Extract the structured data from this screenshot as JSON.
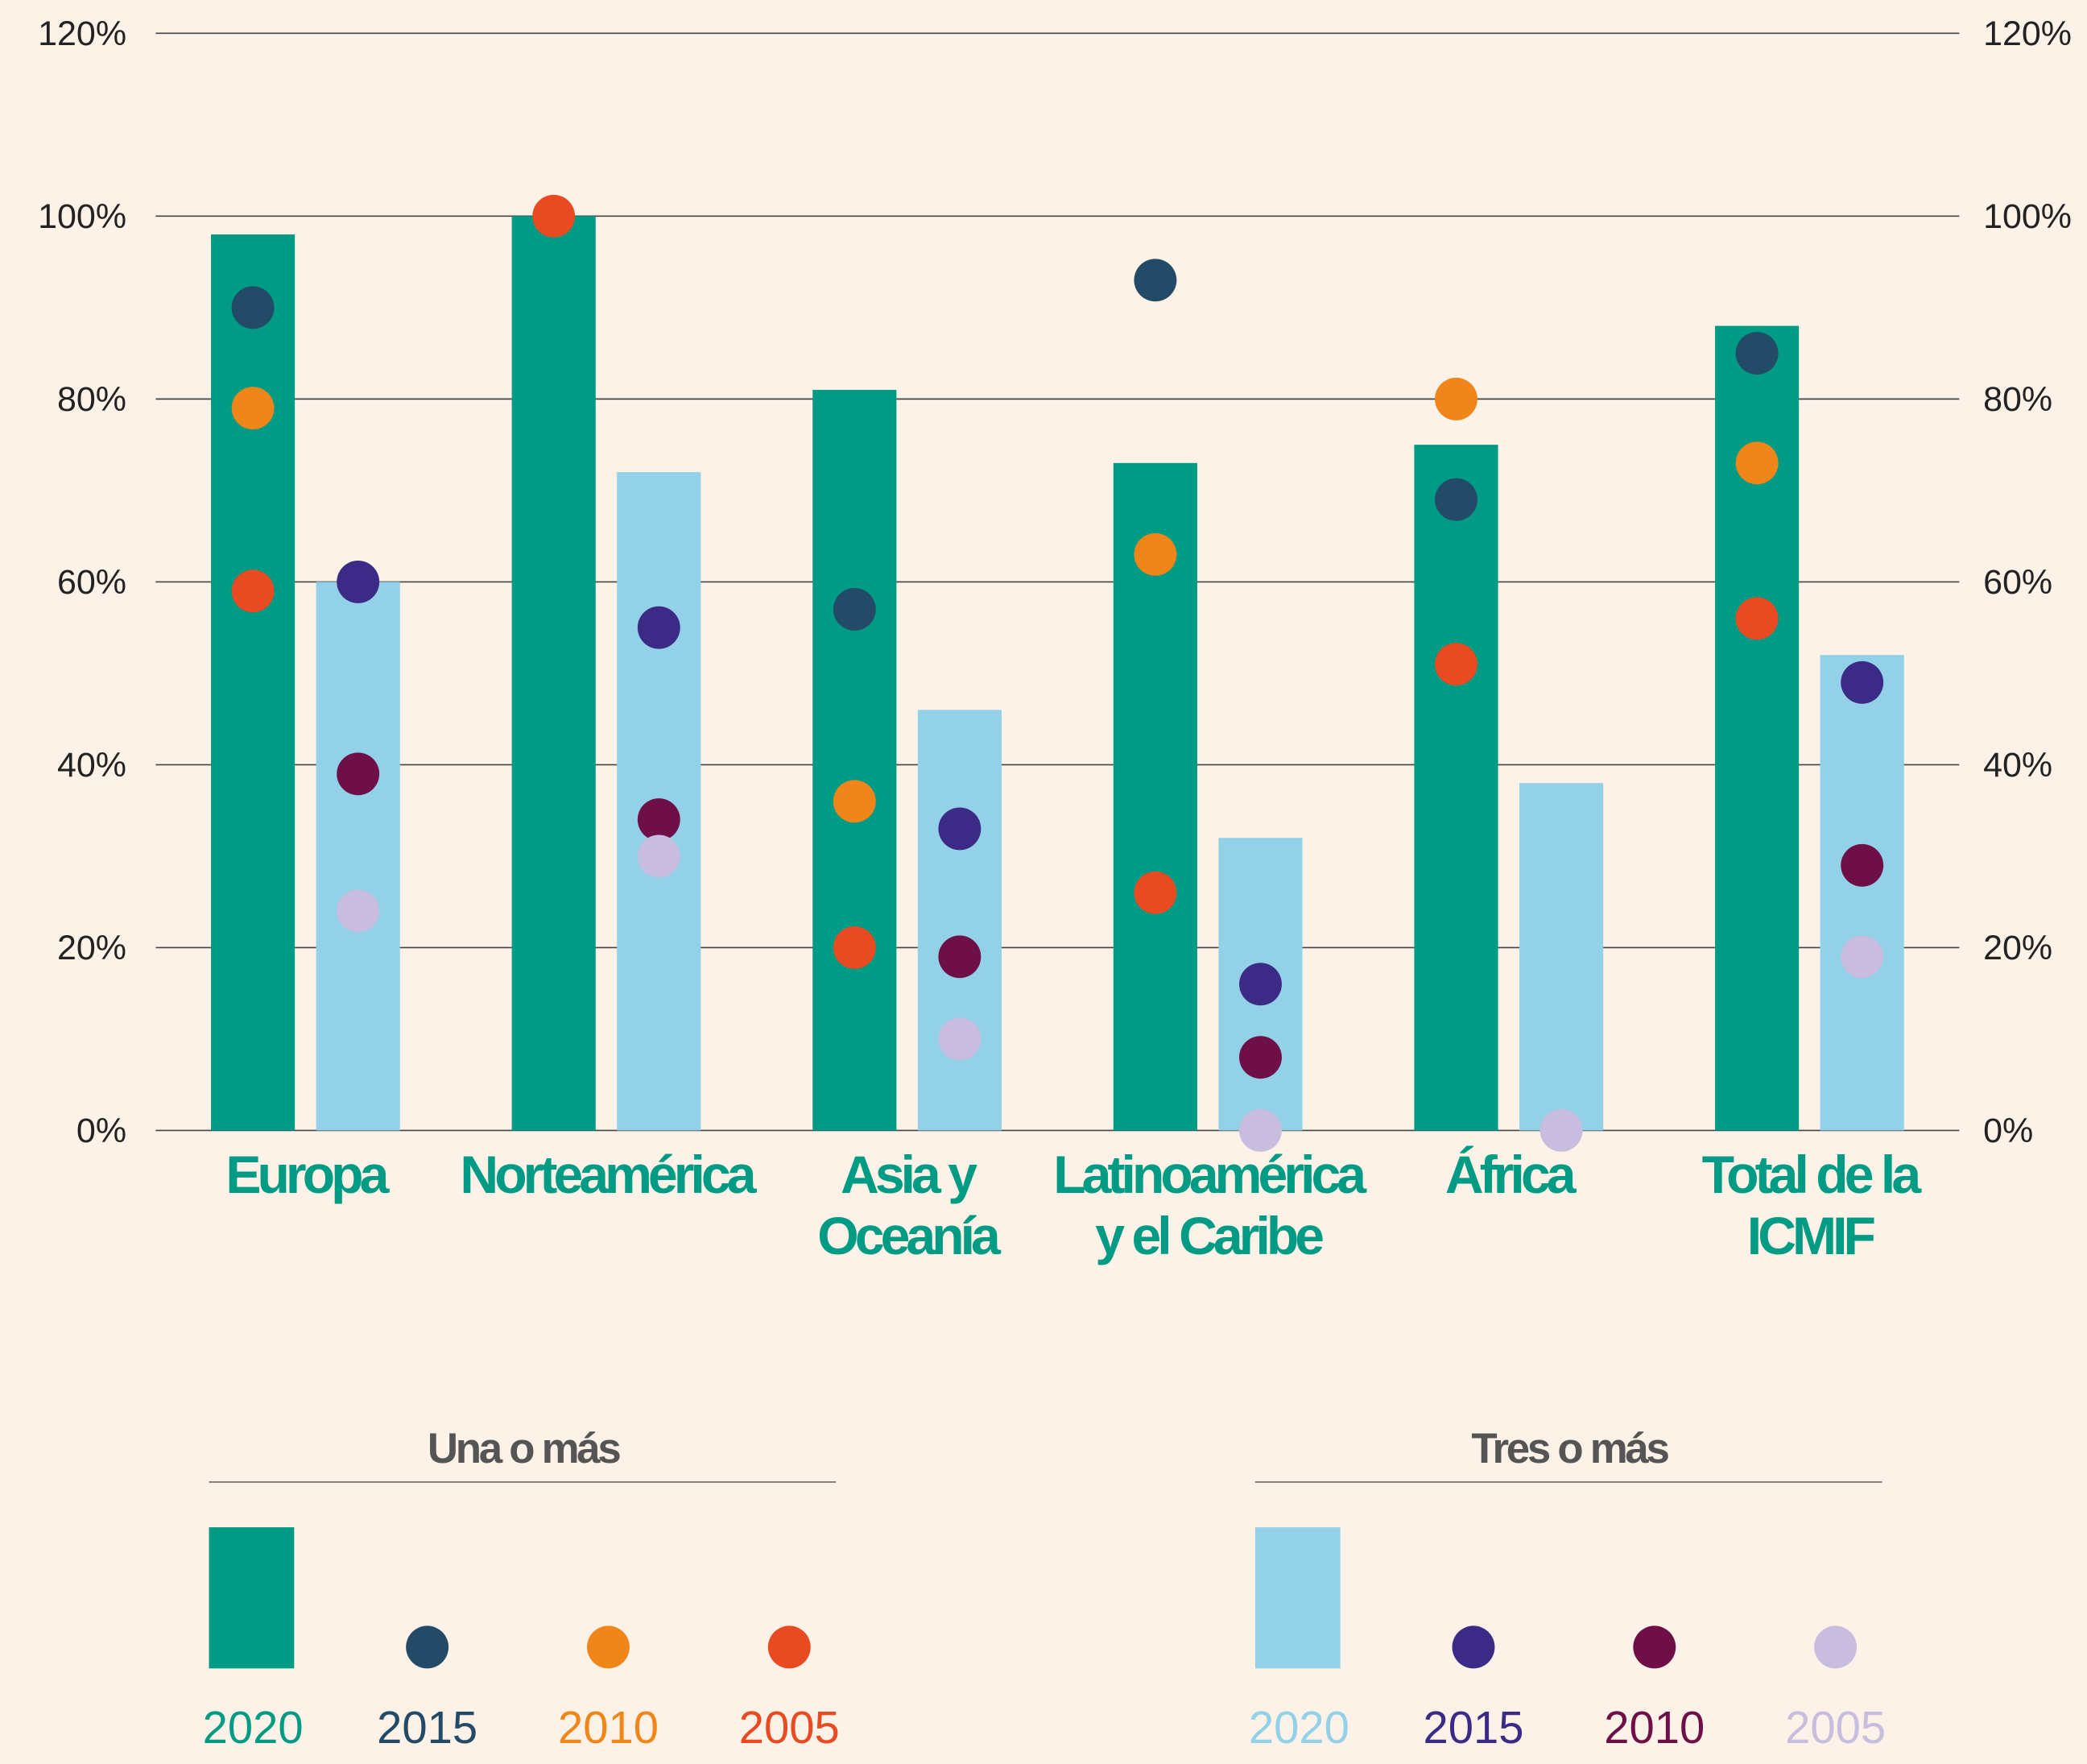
{
  "chart_data": {
    "type": "bar",
    "categories": [
      "Europa",
      "Norteamérica",
      "Asia y\nOceanía",
      "Latinoamérica\ny el Caribe",
      "África",
      "Total de la\nICMIF"
    ],
    "ylim": [
      0,
      120
    ],
    "yticks": [
      {
        "value": 0,
        "label": "0%"
      },
      {
        "value": 20,
        "label": "20%"
      },
      {
        "value": 40,
        "label": "40%"
      },
      {
        "value": 60,
        "label": "60%"
      },
      {
        "value": 80,
        "label": "80%"
      },
      {
        "value": 100,
        "label": "100%"
      },
      {
        "value": 120,
        "label": "120%"
      }
    ],
    "grid": true,
    "groups": [
      {
        "name": "Una o más",
        "series": [
          {
            "name": "2020",
            "style": "bar",
            "color": "#009b84",
            "values": [
              98,
              100,
              81,
              73,
              75,
              88
            ]
          },
          {
            "name": "2015",
            "style": "dot",
            "color": "#234a66",
            "values": [
              90,
              null,
              57,
              93,
              69,
              85
            ]
          },
          {
            "name": "2010",
            "style": "dot",
            "color": "#f08519",
            "values": [
              79,
              null,
              36,
              63,
              80,
              73
            ]
          },
          {
            "name": "2005",
            "style": "dot",
            "color": "#e84a21",
            "values": [
              59,
              100,
              20,
              26,
              51,
              56
            ]
          }
        ]
      },
      {
        "name": "Tres o más",
        "series": [
          {
            "name": "2020",
            "style": "bar",
            "color": "#92d1e8",
            "values": [
              60,
              72,
              46,
              32,
              38,
              52
            ]
          },
          {
            "name": "2015",
            "style": "dot",
            "color": "#3b2a86",
            "values": [
              60,
              55,
              33,
              16,
              null,
              49
            ]
          },
          {
            "name": "2010",
            "style": "dot",
            "color": "#6e0f47",
            "values": [
              39,
              34,
              19,
              8,
              null,
              29
            ]
          },
          {
            "name": "2005",
            "style": "dot",
            "color": "#c9bddf",
            "values": [
              24,
              30,
              10,
              0,
              0,
              19
            ]
          }
        ]
      }
    ]
  }
}
